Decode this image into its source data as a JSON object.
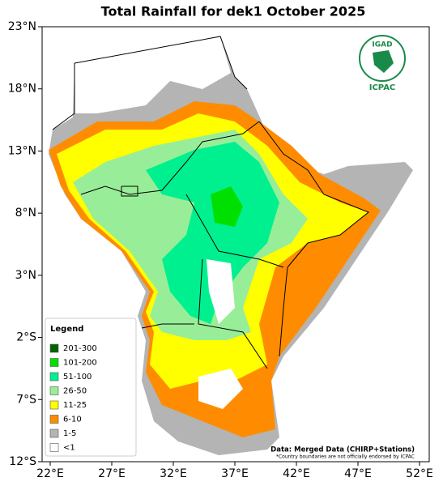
{
  "title": "Total Rainfall for dek1 October 2025",
  "x_axis_labels": [
    "22°E",
    "27°E",
    "32°E",
    "37°E",
    "42°E",
    "47°E",
    "52°E"
  ],
  "y_axis_labels": [
    "23°N",
    "18°N",
    "13°N",
    "8°N",
    "3°N",
    "2°S",
    "7°S",
    "12°S"
  ],
  "legend": {
    "title": "Legend",
    "items": [
      {
        "label": "201-300",
        "color": "#006400"
      },
      {
        "label": "101-200",
        "color": "#00e000"
      },
      {
        "label": "51-100",
        "color": "#00f090"
      },
      {
        "label": "26-50",
        "color": "#98ee98"
      },
      {
        "label": "11-25",
        "color": "#ffff00"
      },
      {
        "label": "6-10",
        "color": "#ff8c00"
      },
      {
        "label": "1-5",
        "color": "#b4b4b4"
      },
      {
        "label": "<1",
        "color": "#ffffff"
      }
    ]
  },
  "logo": {
    "top": "IGAD",
    "bottom": "ICPAC"
  },
  "source": "Data: Merged Data (CHIRP+Stations)",
  "disclaimer": "*Country boundaries are not officially endorsed by ICPAC"
}
